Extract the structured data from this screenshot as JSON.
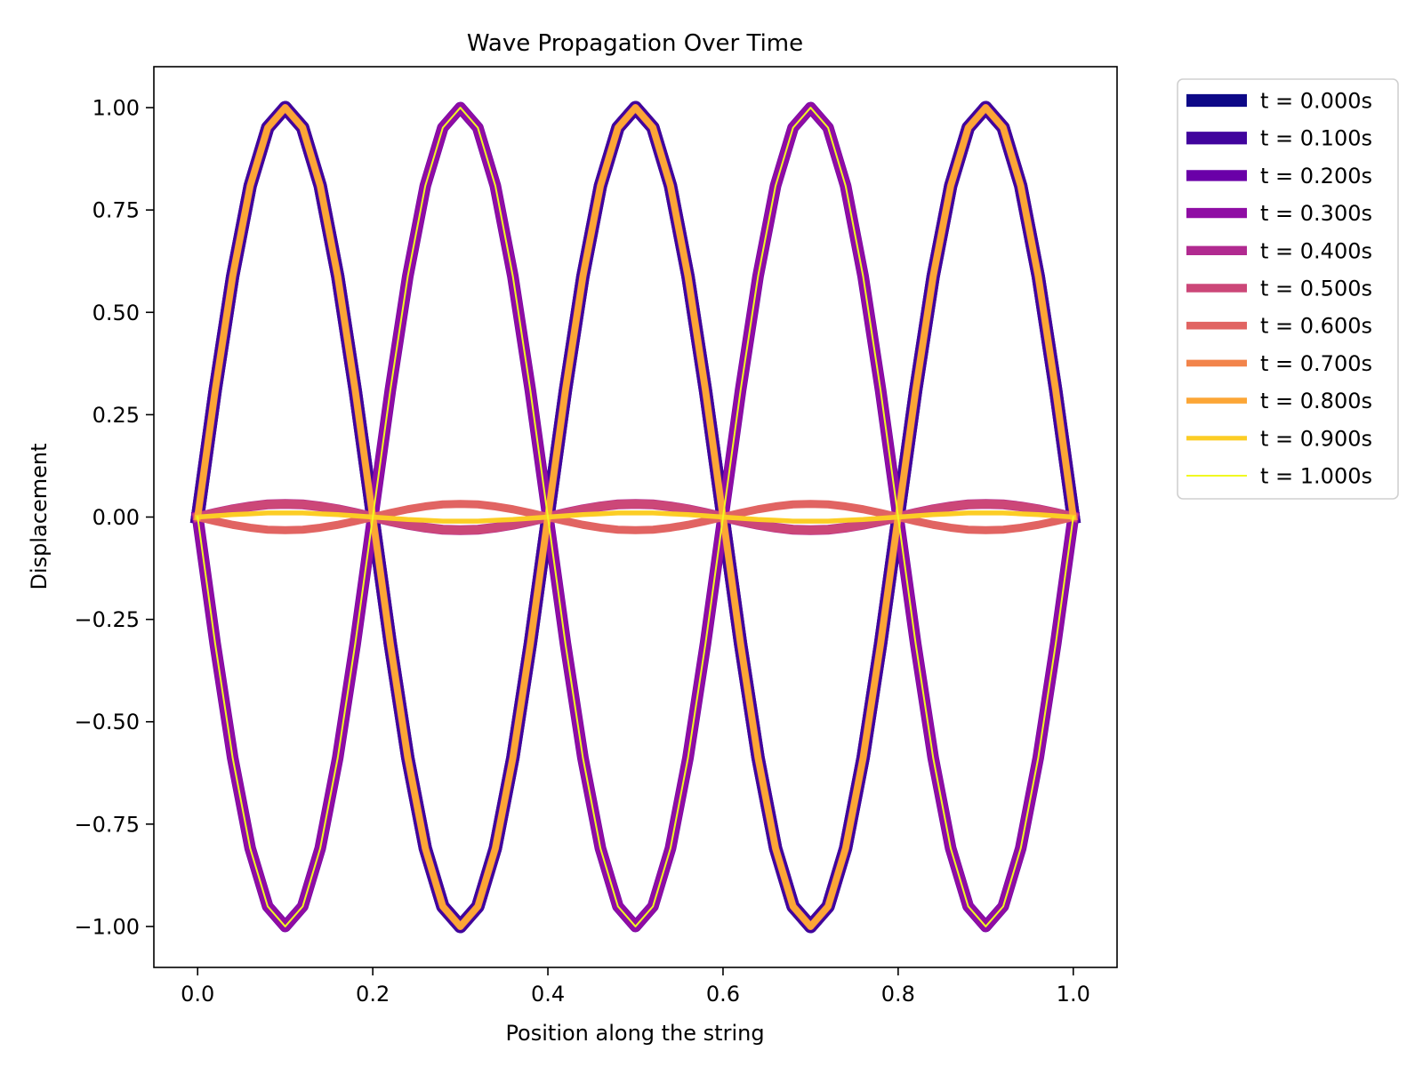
{
  "chart_data": {
    "type": "line",
    "title": "Wave Propagation Over Time",
    "xlabel": "Position along the string",
    "ylabel": "Displacement",
    "xlim": [
      -0.05,
      1.05
    ],
    "ylim": [
      -1.1,
      1.1
    ],
    "grid": false,
    "legend_placement": "outside top-right",
    "x_ticks": [
      0.0,
      0.2,
      0.4,
      0.6,
      0.8,
      1.0
    ],
    "x_tick_labels": [
      "0.0",
      "0.2",
      "0.4",
      "0.6",
      "0.8",
      "1.0"
    ],
    "y_ticks": [
      1.0,
      0.75,
      0.5,
      0.25,
      0.0,
      -0.25,
      -0.5,
      -0.75,
      -1.0
    ],
    "y_tick_labels": [
      "1.00",
      "0.75",
      "0.50",
      "0.25",
      "0.00",
      "−0.25",
      "−0.50",
      "−0.75",
      "−1.00"
    ],
    "x": [
      0.0,
      0.02,
      0.04,
      0.06,
      0.08,
      0.1,
      0.12,
      0.14,
      0.16,
      0.18,
      0.2,
      0.22,
      0.24,
      0.26,
      0.28,
      0.3,
      0.32,
      0.34,
      0.36,
      0.38,
      0.4,
      0.42,
      0.44,
      0.46,
      0.48,
      0.5,
      0.52,
      0.54,
      0.56,
      0.58,
      0.6,
      0.62,
      0.64,
      0.66,
      0.68,
      0.7,
      0.72,
      0.74,
      0.76,
      0.78,
      0.8,
      0.82,
      0.84,
      0.86,
      0.88,
      0.9,
      0.92,
      0.94,
      0.96,
      0.98,
      1.0
    ],
    "series": [
      {
        "name": "t = 0.000s",
        "color": "#0d0887",
        "shape": [
          0.0,
          0.309,
          0.588,
          0.809,
          0.951,
          1.0,
          0.951,
          0.809,
          0.588,
          0.309,
          0.0,
          -0.309,
          -0.588,
          -0.809,
          -0.951,
          -1.0,
          -0.951,
          -0.809,
          -0.588,
          -0.309,
          0.0,
          0.309,
          0.588,
          0.809,
          0.951,
          1.0,
          0.951,
          0.809,
          0.588,
          0.309,
          0.0,
          -0.309,
          -0.588,
          -0.809,
          -0.951,
          -1.0,
          -0.951,
          -0.809,
          -0.588,
          -0.309,
          0.0,
          0.309,
          0.588,
          0.809,
          0.951,
          1.0,
          0.951,
          0.809,
          0.588,
          0.309,
          0.0
        ]
      },
      {
        "name": "t = 0.100s",
        "color": "#41049d",
        "shape": [
          0.0,
          0.309,
          0.588,
          0.809,
          0.951,
          1.0,
          0.951,
          0.809,
          0.588,
          0.309,
          0.0,
          -0.309,
          -0.588,
          -0.809,
          -0.951,
          -1.0,
          -0.951,
          -0.809,
          -0.588,
          -0.309,
          0.0,
          0.309,
          0.588,
          0.809,
          0.951,
          1.0,
          0.951,
          0.809,
          0.588,
          0.309,
          0.0,
          -0.309,
          -0.588,
          -0.809,
          -0.951,
          -1.0,
          -0.951,
          -0.809,
          -0.588,
          -0.309,
          0.0,
          0.309,
          0.588,
          0.809,
          0.951,
          1.0,
          0.951,
          0.809,
          0.588,
          0.309,
          0.0
        ]
      },
      {
        "name": "t = 0.200s",
        "color": "#6a00a8",
        "shape": [
          0.0,
          -0.309,
          -0.588,
          -0.809,
          -0.951,
          -1.0,
          -0.951,
          -0.809,
          -0.588,
          -0.309,
          0.0,
          0.309,
          0.588,
          0.809,
          0.951,
          1.0,
          0.951,
          0.809,
          0.588,
          0.309,
          0.0,
          -0.309,
          -0.588,
          -0.809,
          -0.951,
          -1.0,
          -0.951,
          -0.809,
          -0.588,
          -0.309,
          0.0,
          0.309,
          0.588,
          0.809,
          0.951,
          1.0,
          0.951,
          0.809,
          0.588,
          0.309,
          0.0,
          -0.309,
          -0.588,
          -0.809,
          -0.951,
          -1.0,
          -0.951,
          -0.809,
          -0.588,
          -0.309,
          0.0
        ]
      },
      {
        "name": "t = 0.300s",
        "color": "#8f0da4",
        "shape": [
          0.0,
          -0.309,
          -0.588,
          -0.809,
          -0.951,
          -1.0,
          -0.951,
          -0.809,
          -0.588,
          -0.309,
          0.0,
          0.309,
          0.588,
          0.809,
          0.951,
          1.0,
          0.951,
          0.809,
          0.588,
          0.309,
          0.0,
          -0.309,
          -0.588,
          -0.809,
          -0.951,
          -1.0,
          -0.951,
          -0.809,
          -0.588,
          -0.309,
          0.0,
          0.309,
          0.588,
          0.809,
          0.951,
          1.0,
          0.951,
          0.809,
          0.588,
          0.309,
          0.0,
          -0.309,
          -0.588,
          -0.809,
          -0.951,
          -1.0,
          -0.951,
          -0.809,
          -0.588,
          -0.309,
          0.0
        ]
      },
      {
        "name": "t = 0.400s",
        "color": "#b12a90",
        "shape": [
          0.0,
          0.01,
          0.019,
          0.026,
          0.031,
          0.032,
          0.031,
          0.026,
          0.019,
          0.01,
          0.0,
          -0.01,
          -0.019,
          -0.026,
          -0.031,
          -0.032,
          -0.031,
          -0.026,
          -0.019,
          -0.01,
          0.0,
          0.01,
          0.019,
          0.026,
          0.031,
          0.032,
          0.031,
          0.026,
          0.019,
          0.01,
          0.0,
          -0.01,
          -0.019,
          -0.026,
          -0.031,
          -0.032,
          -0.031,
          -0.026,
          -0.019,
          -0.01,
          0.0,
          0.01,
          0.019,
          0.026,
          0.031,
          0.032,
          0.031,
          0.026,
          0.019,
          0.01,
          0.0
        ]
      },
      {
        "name": "t = 0.500s",
        "color": "#cc4778",
        "shape": [
          0.0,
          0.01,
          0.019,
          0.026,
          0.031,
          0.032,
          0.031,
          0.026,
          0.019,
          0.01,
          0.0,
          -0.01,
          -0.019,
          -0.026,
          -0.031,
          -0.032,
          -0.031,
          -0.026,
          -0.019,
          -0.01,
          0.0,
          0.01,
          0.019,
          0.026,
          0.031,
          0.032,
          0.031,
          0.026,
          0.019,
          0.01,
          0.0,
          -0.01,
          -0.019,
          -0.026,
          -0.031,
          -0.032,
          -0.031,
          -0.026,
          -0.019,
          -0.01,
          0.0,
          0.01,
          0.019,
          0.026,
          0.031,
          0.032,
          0.031,
          0.026,
          0.019,
          0.01,
          0.0
        ]
      },
      {
        "name": "t = 0.600s",
        "color": "#e16462",
        "shape": [
          0.0,
          -0.01,
          -0.019,
          -0.026,
          -0.031,
          -0.032,
          -0.031,
          -0.026,
          -0.019,
          -0.01,
          0.0,
          0.01,
          0.019,
          0.026,
          0.031,
          0.032,
          0.031,
          0.026,
          0.019,
          0.01,
          0.0,
          -0.01,
          -0.019,
          -0.026,
          -0.031,
          -0.032,
          -0.031,
          -0.026,
          -0.019,
          -0.01,
          0.0,
          0.01,
          0.019,
          0.026,
          0.031,
          0.032,
          0.031,
          0.026,
          0.019,
          0.01,
          0.0,
          -0.01,
          -0.019,
          -0.026,
          -0.031,
          -0.032,
          -0.031,
          -0.026,
          -0.019,
          -0.01,
          0.0
        ]
      },
      {
        "name": "t = 0.700s",
        "color": "#f2844b",
        "shape": [
          0.0,
          0.309,
          0.588,
          0.809,
          0.951,
          1.0,
          0.951,
          0.809,
          0.588,
          0.309,
          0.0,
          -0.309,
          -0.588,
          -0.809,
          -0.951,
          -1.0,
          -0.951,
          -0.809,
          -0.588,
          -0.309,
          0.0,
          0.309,
          0.588,
          0.809,
          0.951,
          1.0,
          0.951,
          0.809,
          0.588,
          0.309,
          0.0,
          -0.309,
          -0.588,
          -0.809,
          -0.951,
          -1.0,
          -0.951,
          -0.809,
          -0.588,
          -0.309,
          0.0,
          0.309,
          0.588,
          0.809,
          0.951,
          1.0,
          0.951,
          0.809,
          0.588,
          0.309,
          0.0
        ]
      },
      {
        "name": "t = 0.800s",
        "color": "#fca636",
        "shape": [
          0.0,
          0.309,
          0.588,
          0.809,
          0.951,
          1.0,
          0.951,
          0.809,
          0.588,
          0.309,
          0.0,
          -0.309,
          -0.588,
          -0.809,
          -0.951,
          -1.0,
          -0.951,
          -0.809,
          -0.588,
          -0.309,
          0.0,
          0.309,
          0.588,
          0.809,
          0.951,
          1.0,
          0.951,
          0.809,
          0.588,
          0.309,
          0.0,
          -0.309,
          -0.588,
          -0.809,
          -0.951,
          -1.0,
          -0.951,
          -0.809,
          -0.588,
          -0.309,
          0.0,
          0.309,
          0.588,
          0.809,
          0.951,
          1.0,
          0.951,
          0.809,
          0.588,
          0.309,
          0.0
        ]
      },
      {
        "name": "t = 0.900s",
        "color": "#fccd25",
        "shape": [
          0.0,
          0.003,
          0.006,
          0.008,
          0.01,
          0.01,
          0.01,
          0.008,
          0.006,
          0.003,
          0.0,
          -0.003,
          -0.006,
          -0.008,
          -0.01,
          -0.01,
          -0.01,
          -0.008,
          -0.006,
          -0.003,
          0.0,
          0.003,
          0.006,
          0.008,
          0.01,
          0.01,
          0.01,
          0.008,
          0.006,
          0.003,
          0.0,
          -0.003,
          -0.006,
          -0.008,
          -0.01,
          -0.01,
          -0.01,
          -0.008,
          -0.006,
          -0.003,
          0.0,
          0.003,
          0.006,
          0.008,
          0.01,
          0.01,
          0.01,
          0.008,
          0.006,
          0.003,
          0.0
        ]
      },
      {
        "name": "t = 1.000s",
        "color": "#f0f921",
        "shape": [
          0.0,
          -0.309,
          -0.588,
          -0.809,
          -0.951,
          -1.0,
          -0.951,
          -0.809,
          -0.588,
          -0.309,
          0.0,
          0.309,
          0.588,
          0.809,
          0.951,
          1.0,
          0.951,
          0.809,
          0.588,
          0.309,
          0.0,
          -0.309,
          -0.588,
          -0.809,
          -0.951,
          -1.0,
          -0.951,
          -0.809,
          -0.588,
          -0.309,
          0.0,
          0.309,
          0.588,
          0.809,
          0.951,
          1.0,
          0.951,
          0.809,
          0.588,
          0.309,
          0.0,
          -0.309,
          -0.588,
          -0.809,
          -0.951,
          -1.0,
          -0.951,
          -0.809,
          -0.588,
          -0.309,
          0.0
        ]
      }
    ]
  }
}
